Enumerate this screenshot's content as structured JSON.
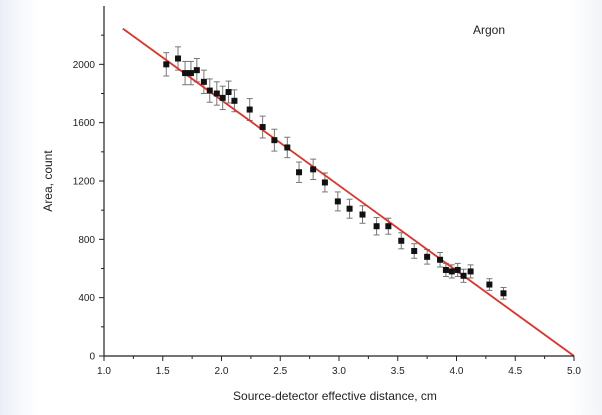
{
  "chart_data": {
    "type": "scatter",
    "title": "",
    "annotation": "Argon",
    "xlabel": "Source-detector effective distance, cm",
    "ylabel": "Area, count",
    "xlim": [
      1.0,
      5.0
    ],
    "ylim": [
      0,
      2400
    ],
    "xticks": [
      "1.0",
      "1.5",
      "2.0",
      "2.5",
      "3.0",
      "3.5",
      "4.0",
      "4.5",
      "5.0"
    ],
    "yticks": [
      "0",
      "400",
      "800",
      "1200",
      "1600",
      "2000"
    ],
    "grid": false,
    "colors": {
      "points": "#111111",
      "errorbars": "#777777",
      "fit_line": "#e0322a",
      "axes": "#222222"
    },
    "series": [
      {
        "type": "scatter_errorbars",
        "points": [
          {
            "x": 1.53,
            "y": 2000,
            "err": 80
          },
          {
            "x": 1.63,
            "y": 2040,
            "err": 80
          },
          {
            "x": 1.69,
            "y": 1940,
            "err": 80
          },
          {
            "x": 1.74,
            "y": 1940,
            "err": 80
          },
          {
            "x": 1.79,
            "y": 1960,
            "err": 80
          },
          {
            "x": 1.85,
            "y": 1880,
            "err": 80
          },
          {
            "x": 1.9,
            "y": 1820,
            "err": 80
          },
          {
            "x": 1.96,
            "y": 1800,
            "err": 80
          },
          {
            "x": 2.01,
            "y": 1770,
            "err": 80
          },
          {
            "x": 2.06,
            "y": 1810,
            "err": 75
          },
          {
            "x": 2.11,
            "y": 1750,
            "err": 75
          },
          {
            "x": 2.24,
            "y": 1690,
            "err": 75
          },
          {
            "x": 2.35,
            "y": 1570,
            "err": 75
          },
          {
            "x": 2.45,
            "y": 1480,
            "err": 75
          },
          {
            "x": 2.56,
            "y": 1430,
            "err": 70
          },
          {
            "x": 2.66,
            "y": 1260,
            "err": 70
          },
          {
            "x": 2.78,
            "y": 1280,
            "err": 70
          },
          {
            "x": 2.88,
            "y": 1190,
            "err": 65
          },
          {
            "x": 2.99,
            "y": 1060,
            "err": 65
          },
          {
            "x": 3.09,
            "y": 1010,
            "err": 65
          },
          {
            "x": 3.2,
            "y": 970,
            "err": 60
          },
          {
            "x": 3.32,
            "y": 890,
            "err": 60
          },
          {
            "x": 3.42,
            "y": 890,
            "err": 55
          },
          {
            "x": 3.53,
            "y": 790,
            "err": 55
          },
          {
            "x": 3.64,
            "y": 720,
            "err": 50
          },
          {
            "x": 3.75,
            "y": 680,
            "err": 50
          },
          {
            "x": 3.86,
            "y": 660,
            "err": 50
          },
          {
            "x": 3.91,
            "y": 590,
            "err": 45
          },
          {
            "x": 3.96,
            "y": 580,
            "err": 45
          },
          {
            "x": 4.01,
            "y": 590,
            "err": 45
          },
          {
            "x": 4.06,
            "y": 550,
            "err": 45
          },
          {
            "x": 4.12,
            "y": 580,
            "err": 45
          },
          {
            "x": 4.28,
            "y": 490,
            "err": 40
          },
          {
            "x": 4.4,
            "y": 430,
            "err": 40
          }
        ]
      },
      {
        "type": "line",
        "points": [
          {
            "x": 1.16,
            "y": 2245
          },
          {
            "x": 5.0,
            "y": 0
          }
        ]
      }
    ]
  }
}
